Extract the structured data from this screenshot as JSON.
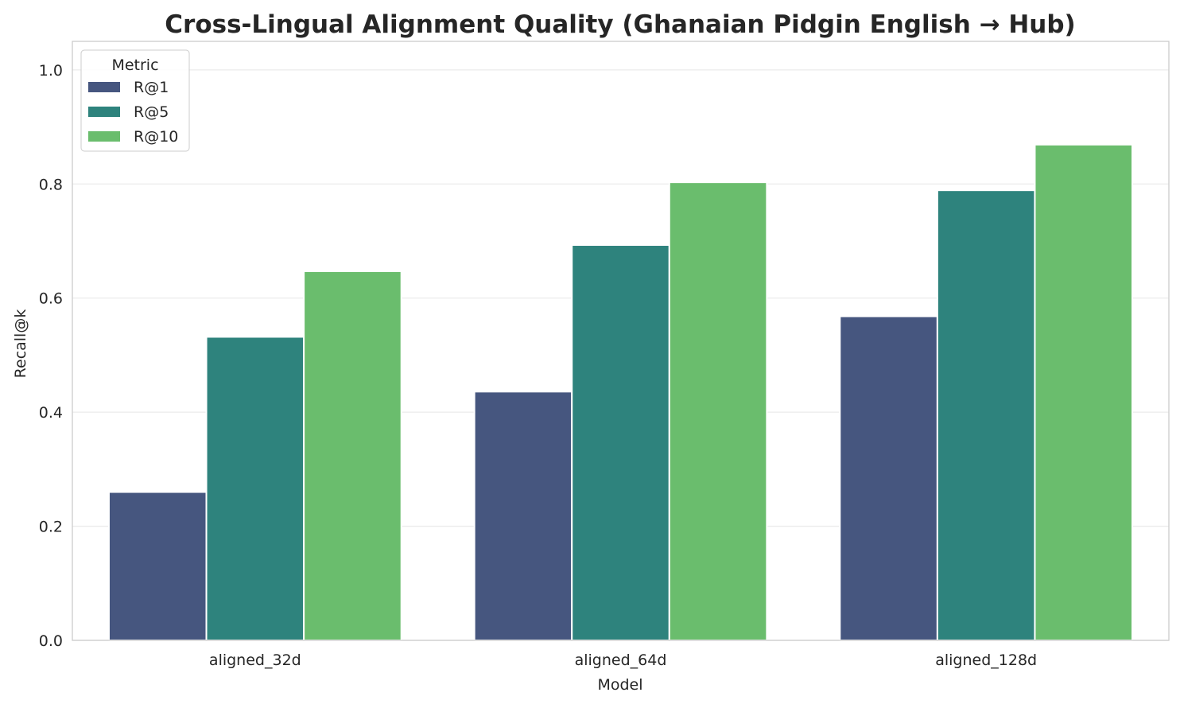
{
  "chart_data": {
    "type": "bar",
    "title": "Cross-Lingual Alignment Quality (Ghanaian Pidgin English → Hub)",
    "xlabel": "Model",
    "ylabel": "Recall@k",
    "categories": [
      "aligned_32d",
      "aligned_64d",
      "aligned_128d"
    ],
    "series": [
      {
        "name": "R@1",
        "color": "#46567f",
        "values": [
          0.26,
          0.436,
          0.568
        ]
      },
      {
        "name": "R@5",
        "color": "#2e837d",
        "values": [
          0.532,
          0.693,
          0.789
        ]
      },
      {
        "name": "R@10",
        "color": "#6abd6d",
        "values": [
          0.647,
          0.803,
          0.869
        ]
      }
    ],
    "ylim": [
      0,
      1.05
    ],
    "yticks": [
      "0.0",
      "0.2",
      "0.4",
      "0.6",
      "0.8",
      "1.0"
    ],
    "grid": "horizontal",
    "legend": {
      "title": "Metric",
      "placement": "top-left"
    }
  }
}
